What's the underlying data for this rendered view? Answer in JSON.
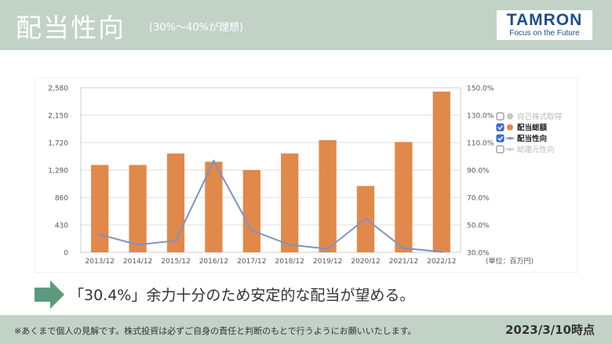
{
  "header": {
    "title": "配当性向",
    "subtitle": "(30%〜40%が理想)"
  },
  "logo": {
    "name": "TAMRON",
    "tagline": "Focus on the Future"
  },
  "chart_data": {
    "type": "bar",
    "categories": [
      "2013/12",
      "2014/12",
      "2015/12",
      "2016/12",
      "2017/12",
      "2018/12",
      "2019/12",
      "2020/12",
      "2021/12",
      "2022/12"
    ],
    "series": [
      {
        "name": "配当総額",
        "type": "bar",
        "axis": "left",
        "color": "#e0894a",
        "values": [
          1370,
          1370,
          1550,
          1420,
          1290,
          1550,
          1760,
          1040,
          1730,
          2520
        ]
      },
      {
        "name": "配当性向",
        "type": "line",
        "axis": "right",
        "color": "#7b93c4",
        "values": [
          43.0,
          35.5,
          38.5,
          96.5,
          46.0,
          35.5,
          32.5,
          54.5,
          33.0,
          30.4
        ]
      }
    ],
    "left_axis": {
      "ticks": [
        "0",
        "430",
        "860",
        "1,290",
        "1,720",
        "2,150",
        "2,580"
      ],
      "ylim": [
        0,
        2580
      ]
    },
    "right_axis": {
      "ticks": [
        "30.0%",
        "50.0%",
        "70.0%",
        "90.0%",
        "110.0%",
        "130.0%",
        "150.0%"
      ],
      "ylim": [
        30,
        150
      ]
    },
    "unit_label": "(単位：百万円)",
    "grid": true,
    "legend_position": "right",
    "legend": [
      {
        "label": "自己株式取得",
        "checked": false,
        "color": "#c8c8c8",
        "marker": "circle",
        "active": false
      },
      {
        "label": "配当総額",
        "checked": true,
        "color": "#e0894a",
        "marker": "circle",
        "active": true
      },
      {
        "label": "配当性向",
        "checked": true,
        "color": "#7b93c4",
        "marker": "line",
        "active": true
      },
      {
        "label": "総還元性向",
        "checked": false,
        "color": "#c8c8c8",
        "marker": "line",
        "active": false
      }
    ]
  },
  "message": "「30.4%」余力十分のため安定的な配当が望める。",
  "footer": {
    "disclaimer": "※あくまで個人の見解です。株式投資は必ずご自身の責任と判断のもとで行うようにお願いいたします。",
    "date": "2023/3/10時点"
  },
  "colors": {
    "header_bg": "#c2d2c7",
    "accent_green": "#5b9a7c",
    "bar": "#e0894a",
    "line": "#7b93c4"
  }
}
